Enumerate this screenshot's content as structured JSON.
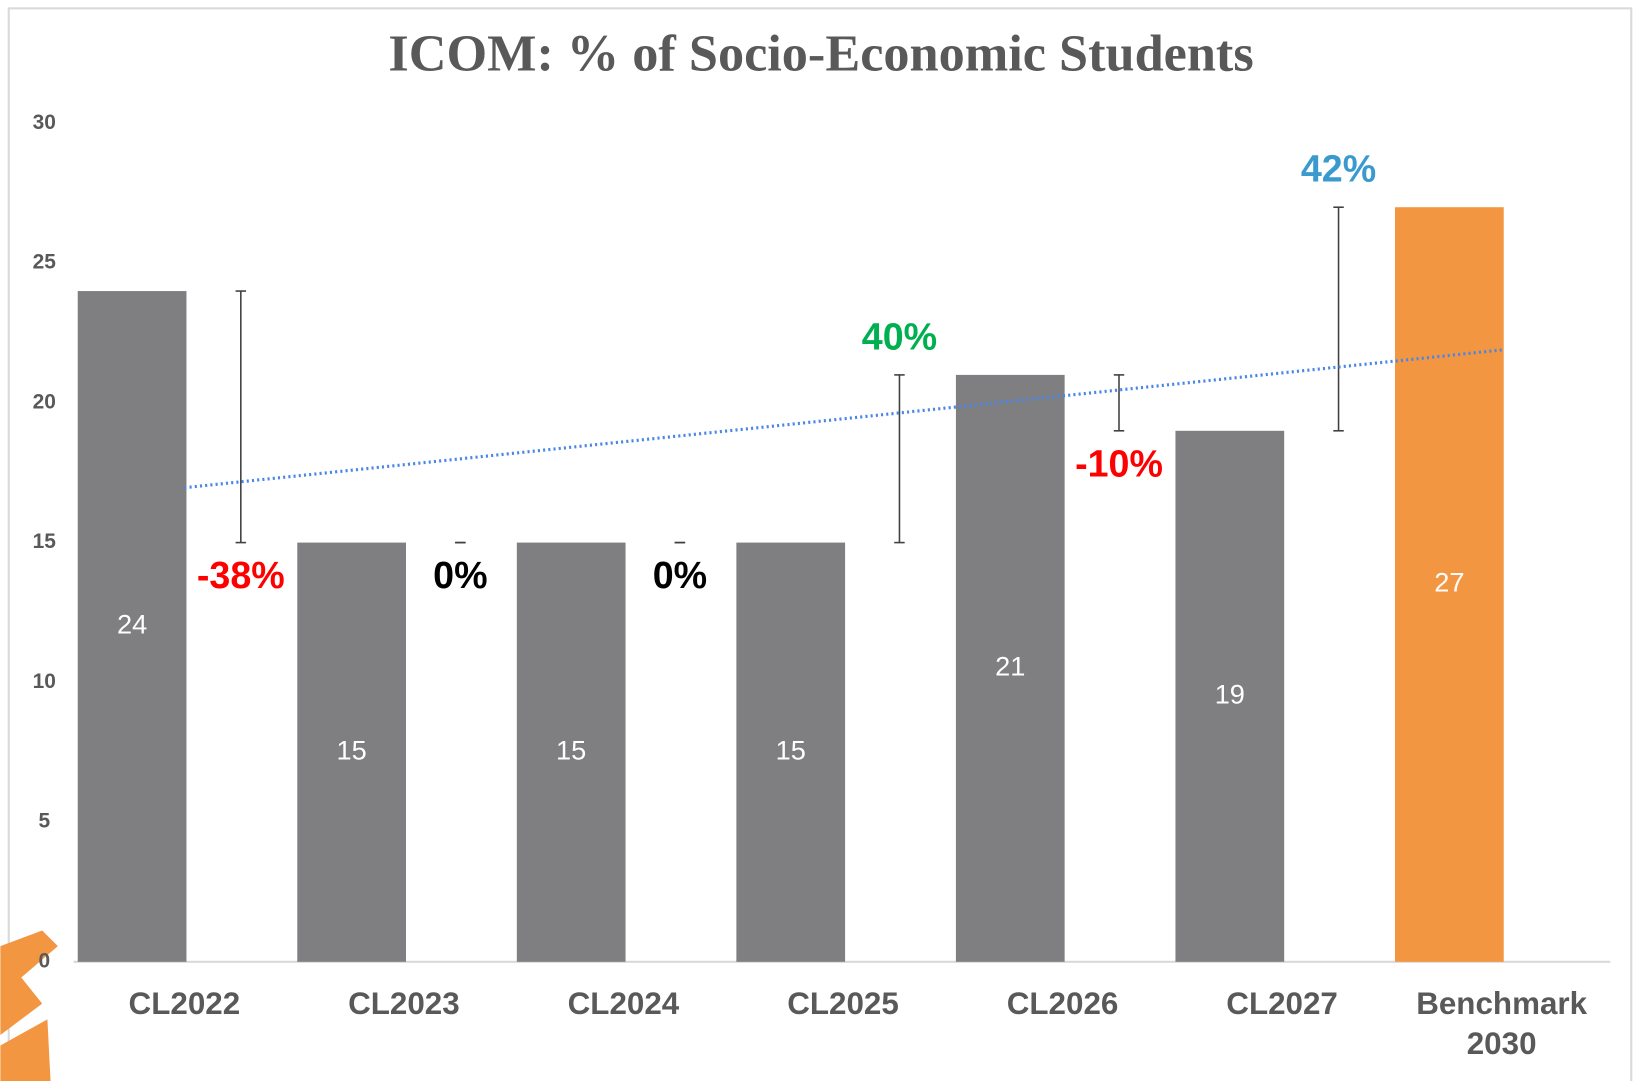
{
  "chart_data": {
    "type": "bar",
    "title": "ICOM: % of Socio-Economic Students",
    "categories": [
      "CL2022",
      "CL2023",
      "CL2024",
      "CL2025",
      "CL2026",
      "CL2027",
      "Benchmark 2030"
    ],
    "values": [
      24,
      15,
      15,
      15,
      21,
      19,
      27
    ],
    "colors": [
      "#7f7f82",
      "#7f7f82",
      "#7f7f82",
      "#7f7f82",
      "#7f7f82",
      "#7f7f82",
      "#f39642"
    ],
    "ylim": [
      0,
      30
    ],
    "yticks": [
      0,
      5,
      10,
      15,
      20,
      25,
      30
    ],
    "grid": false,
    "trendline": {
      "type": "linear",
      "color": "#4a86e8"
    },
    "change_annotations": [
      {
        "label": "-38%",
        "color": "#ff0000"
      },
      {
        "label": "0%",
        "color": "#000000"
      },
      {
        "label": "0%",
        "color": "#000000"
      },
      {
        "label": "40%",
        "color": "#00b050"
      },
      {
        "label": "-10%",
        "color": "#ff0000"
      },
      {
        "label": "42%",
        "color": "#3a9ad0"
      }
    ]
  }
}
